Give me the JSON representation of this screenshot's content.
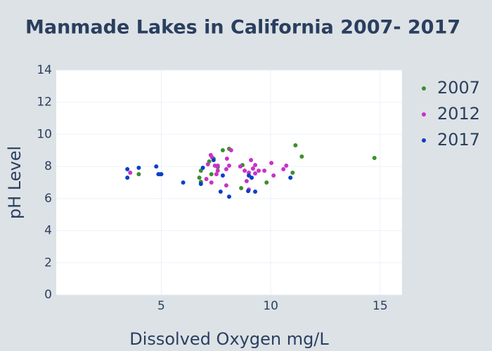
{
  "chart_data": {
    "type": "scatter",
    "title": "Manmade  Lakes in California 2007- 2017",
    "x_label": "Dissolved Oxygen mg/L",
    "y_label": "pH Level",
    "xlim": [
      0.2,
      16
    ],
    "ylim": [
      0,
      14
    ],
    "xticks": [
      5,
      10,
      15
    ],
    "yticks": [
      0,
      2,
      4,
      6,
      8,
      10,
      12,
      14
    ],
    "grid": true,
    "legend_position": "right",
    "series": [
      {
        "name": "2007",
        "color": "#3d8f2a",
        "x": [
          3.97,
          6.74,
          6.81,
          6.81,
          7.19,
          7.29,
          7.39,
          7.58,
          7.81,
          8.1,
          8.65,
          8.71,
          9.81,
          11.0,
          11.13,
          11.42,
          14.74
        ],
        "values": [
          7.52,
          7.3,
          7.74,
          7.04,
          8.31,
          7.52,
          8.49,
          7.96,
          9.01,
          9.1,
          6.65,
          8.09,
          7.0,
          7.61,
          9.32,
          8.62,
          8.53
        ]
      },
      {
        "name": "2012",
        "color": "#c832c8",
        "x": [
          3.58,
          4.94,
          7.06,
          7.13,
          7.26,
          7.32,
          7.29,
          7.45,
          7.58,
          7.58,
          7.52,
          7.97,
          7.97,
          8.0,
          8.1,
          8.19,
          8.81,
          8.9,
          9.0,
          9.1,
          9.19,
          9.29,
          9.29,
          9.45,
          9.71,
          10.03,
          10.13,
          10.58,
          10.71,
          9.0,
          8.61
        ],
        "values": [
          7.61,
          7.52,
          7.22,
          8.14,
          8.71,
          8.57,
          7.0,
          8.05,
          7.74,
          8.05,
          7.52,
          6.82,
          7.83,
          8.49,
          8.05,
          9.01,
          7.74,
          7.09,
          7.61,
          8.4,
          7.87,
          8.09,
          7.57,
          7.74,
          7.74,
          8.22,
          7.44,
          7.83,
          8.05,
          6.56,
          8.0
        ]
      },
      {
        "name": "2017",
        "color": "#0a3fc8",
        "x": [
          3.45,
          3.45,
          3.97,
          4.77,
          4.87,
          5.0,
          6.0,
          6.81,
          6.9,
          7.39,
          7.71,
          7.81,
          8.1,
          8.97,
          9.0,
          9.13,
          9.29,
          10.9
        ],
        "values": [
          7.83,
          7.3,
          7.92,
          8.0,
          7.52,
          7.52,
          7.0,
          6.91,
          7.92,
          8.4,
          6.43,
          7.44,
          6.12,
          6.47,
          7.44,
          7.3,
          6.43,
          7.3
        ]
      }
    ]
  }
}
